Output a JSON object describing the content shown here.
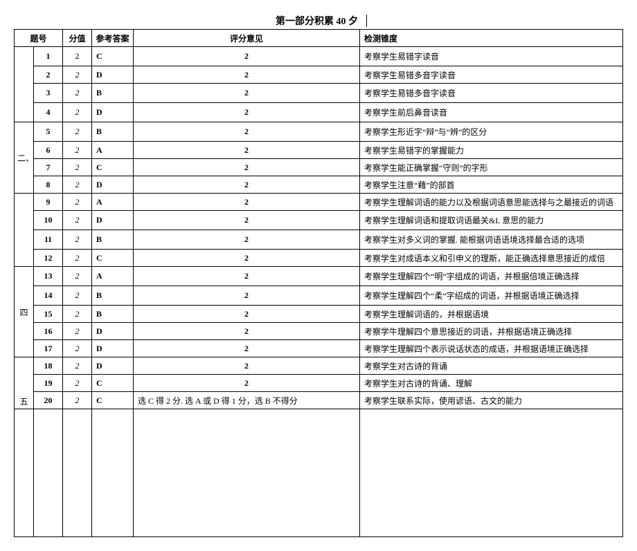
{
  "title": "第一部分积累 40 夕",
  "headers": {
    "section": "题号",
    "score": "分值",
    "answer": "参考答案",
    "opinion": "评分意见",
    "dimension": "检测锥度"
  },
  "sections": [
    {
      "label": "",
      "rows": [
        {
          "q": "1",
          "score": "2",
          "ans": "C",
          "op": "2",
          "dim": "考察学生易错字读音",
          "tall": true,
          "italic": false
        },
        {
          "q": "2",
          "score": "2",
          "ans": "D",
          "op": "2",
          "dim": "考察学生易错多音字读音",
          "tall": false,
          "italic": true
        },
        {
          "q": "3",
          "score": "2",
          "ans": "B",
          "op": "2",
          "dim": "考察学生易错多音字读音",
          "tall": true,
          "italic": true
        },
        {
          "q": "4",
          "score": "2",
          "ans": "D",
          "op": "2",
          "dim": "考察学生前后鼻音读音",
          "tall": true,
          "italic": true
        }
      ]
    },
    {
      "label": "二、",
      "rows": [
        {
          "q": "5",
          "score": "2",
          "ans": "B",
          "op": "2",
          "dim": "考察学生形近字“辩”与“辨”的区分",
          "tall": true,
          "italic": true
        },
        {
          "q": "6",
          "score": "2",
          "ans": "A",
          "op": "2",
          "dim": "考察学生易错字的掌握能力",
          "tall": false,
          "italic": true
        },
        {
          "q": "7",
          "score": "2",
          "ans": "C",
          "op": "2",
          "dim": "考察学生能正确掌握“守则”的字形",
          "tall": false,
          "italic": true
        },
        {
          "q": "8",
          "score": "2",
          "ans": "D",
          "op": "2",
          "dim": "考察学生注意“藉”的部首",
          "tall": false,
          "italic": true
        }
      ]
    },
    {
      "label": "",
      "rows": [
        {
          "q": "9",
          "score": "2",
          "ans": "A",
          "op": "2",
          "dim": "考察学生理解词语的能力以及根据词语意思能选择与之最接近的词语",
          "tall": false,
          "italic": true
        },
        {
          "q": "10",
          "score": "2",
          "ans": "D",
          "op": "2",
          "dim": "考察学生理解词语和提取词语最关&L 意思的能力",
          "tall": true,
          "italic": true
        },
        {
          "q": "11",
          "score": "2",
          "ans": "B",
          "op": "2",
          "dim": "考察学生对多义词的掌握. 能根据词语语境选择最合适的选项",
          "tall": true,
          "italic": true
        },
        {
          "q": "12",
          "score": "2",
          "ans": "C",
          "op": "2",
          "dim": "考察学生对成语本义和引申义的理斯，能正确选择意思接近的成倍",
          "tall": false,
          "italic": true
        }
      ]
    },
    {
      "label": "四",
      "rows": [
        {
          "q": "13",
          "score": "2",
          "ans": "A",
          "op": "2",
          "dim": "考察学生理解四个“明”字组成的词语，并根据倍境正确选择",
          "tall": true,
          "italic": true
        },
        {
          "q": "14",
          "score": "2",
          "ans": "B",
          "op": "2",
          "dim": "考察学生理解四个“柔”字绍成的词语，并根据语境正确选择",
          "tall": true,
          "italic": true
        },
        {
          "q": "15",
          "score": "2",
          "ans": "B",
          "op": "2",
          "dim": "考察学生理解词语的，并根据语境",
          "tall": false,
          "italic": true
        },
        {
          "q": "16",
          "score": "2",
          "ans": "D",
          "op": "2",
          "dim": "考察学牛理解四个意思接近的词语，并根据语境正确选择",
          "tall": false,
          "italic": true
        },
        {
          "q": "17",
          "score": "2",
          "ans": "D",
          "op": "2",
          "dim": "考察学生理解四个表示说话状态的成语，并根据语境正确选择",
          "tall": false,
          "italic": true
        }
      ]
    },
    {
      "label": "五",
      "rows": [
        {
          "q": "18",
          "score": "2",
          "ans": "D",
          "op": "2",
          "dim": "考察学生对古诗的背诵",
          "tall": false,
          "italic": true
        },
        {
          "q": "19",
          "score": "2",
          "ans": "C",
          "op": "2",
          "dim": "考察学生对古诗的背诵、理解",
          "tall": false,
          "italic": true
        },
        {
          "q": "20",
          "score": "2",
          "ans": "C",
          "op": "选 C 得 2 分. 选 A 或 D 得 1 分，选 B 不得分",
          "dim": "考察学生联系实际，使用谚语、古文的能力",
          "tall": false,
          "italic": true,
          "op_align": "left"
        }
      ]
    }
  ]
}
